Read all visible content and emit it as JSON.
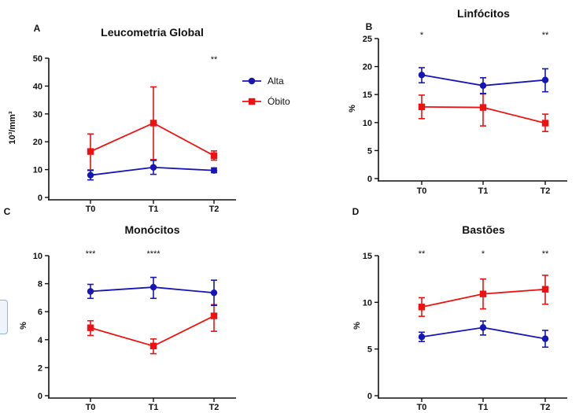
{
  "colors": {
    "alta": "#1515b8",
    "obito": "#ee1111",
    "axis": "#111111"
  },
  "legend": {
    "items": [
      "Alta",
      "Óbito"
    ],
    "placement": "top-right of panel A"
  },
  "chart_data": [
    {
      "panel_label": "A",
      "type": "line",
      "title": "Leucometria Global",
      "xlabel": "",
      "ylabel": "10³/mm³",
      "categories": [
        "T0",
        "T1",
        "T2"
      ],
      "ylim": [
        0,
        50
      ],
      "yticks": [
        0,
        10,
        20,
        30,
        40,
        50
      ],
      "grid": false,
      "series": [
        {
          "name": "Alta",
          "values": [
            8,
            10.8,
            9.7
          ],
          "err_low": [
            6.3,
            8.3,
            8.9
          ],
          "err_high": [
            9.7,
            13.3,
            10.6
          ]
        },
        {
          "name": "Óbito",
          "values": [
            16.5,
            26.7,
            15
          ],
          "err_low": [
            9.9,
            13.6,
            13.4
          ],
          "err_high": [
            22.8,
            39.7,
            16.7
          ]
        }
      ],
      "annotations": [
        "",
        "",
        "**"
      ]
    },
    {
      "panel_label": "B",
      "type": "line",
      "title": "Linfócitos",
      "xlabel": "",
      "ylabel": "%",
      "categories": [
        "T0",
        "T1",
        "T2"
      ],
      "ylim": [
        0,
        25
      ],
      "yticks": [
        0,
        5,
        10,
        15,
        20,
        25
      ],
      "grid": false,
      "series": [
        {
          "name": "Alta",
          "values": [
            18.5,
            16.6,
            17.6
          ],
          "err_low": [
            17.1,
            15.2,
            15.5
          ],
          "err_high": [
            19.8,
            18.0,
            19.6
          ]
        },
        {
          "name": "Óbito",
          "values": [
            12.8,
            12.7,
            9.9
          ],
          "err_low": [
            10.7,
            9.4,
            8.4
          ],
          "err_high": [
            14.9,
            15.1,
            11.5
          ]
        }
      ],
      "annotations": [
        "*",
        "",
        "**"
      ]
    },
    {
      "panel_label": "C",
      "type": "line",
      "title": "Monócitos",
      "xlabel": "",
      "ylabel": "%",
      "categories": [
        "T0",
        "T1",
        "T2"
      ],
      "ylim": [
        0,
        10
      ],
      "yticks": [
        0,
        2,
        4,
        6,
        8,
        10
      ],
      "grid": false,
      "series": [
        {
          "name": "Alta",
          "values": [
            7.45,
            7.75,
            7.35
          ],
          "err_low": [
            6.95,
            6.95,
            6.45
          ],
          "err_high": [
            7.95,
            8.45,
            8.25
          ]
        },
        {
          "name": "Óbito",
          "values": [
            4.85,
            3.55,
            5.7
          ],
          "err_low": [
            4.3,
            3.0,
            4.6
          ],
          "err_high": [
            5.35,
            4.05,
            6.5
          ]
        }
      ],
      "annotations": [
        "***",
        "****",
        ""
      ]
    },
    {
      "panel_label": "D",
      "type": "line",
      "title": "Bastões",
      "xlabel": "",
      "ylabel": "%",
      "categories": [
        "T0",
        "T1",
        "T2"
      ],
      "ylim": [
        0,
        15
      ],
      "yticks": [
        0,
        5,
        10,
        15
      ],
      "grid": false,
      "series": [
        {
          "name": "Alta",
          "values": [
            6.3,
            7.3,
            6.1
          ],
          "err_low": [
            5.8,
            6.5,
            5.2
          ],
          "err_high": [
            6.8,
            8.0,
            7.0
          ]
        },
        {
          "name": "Óbito",
          "values": [
            9.5,
            10.9,
            11.4
          ],
          "err_low": [
            8.5,
            9.3,
            9.8
          ],
          "err_high": [
            10.5,
            12.5,
            12.9
          ]
        }
      ],
      "annotations": [
        "**",
        "*",
        "**"
      ]
    }
  ]
}
